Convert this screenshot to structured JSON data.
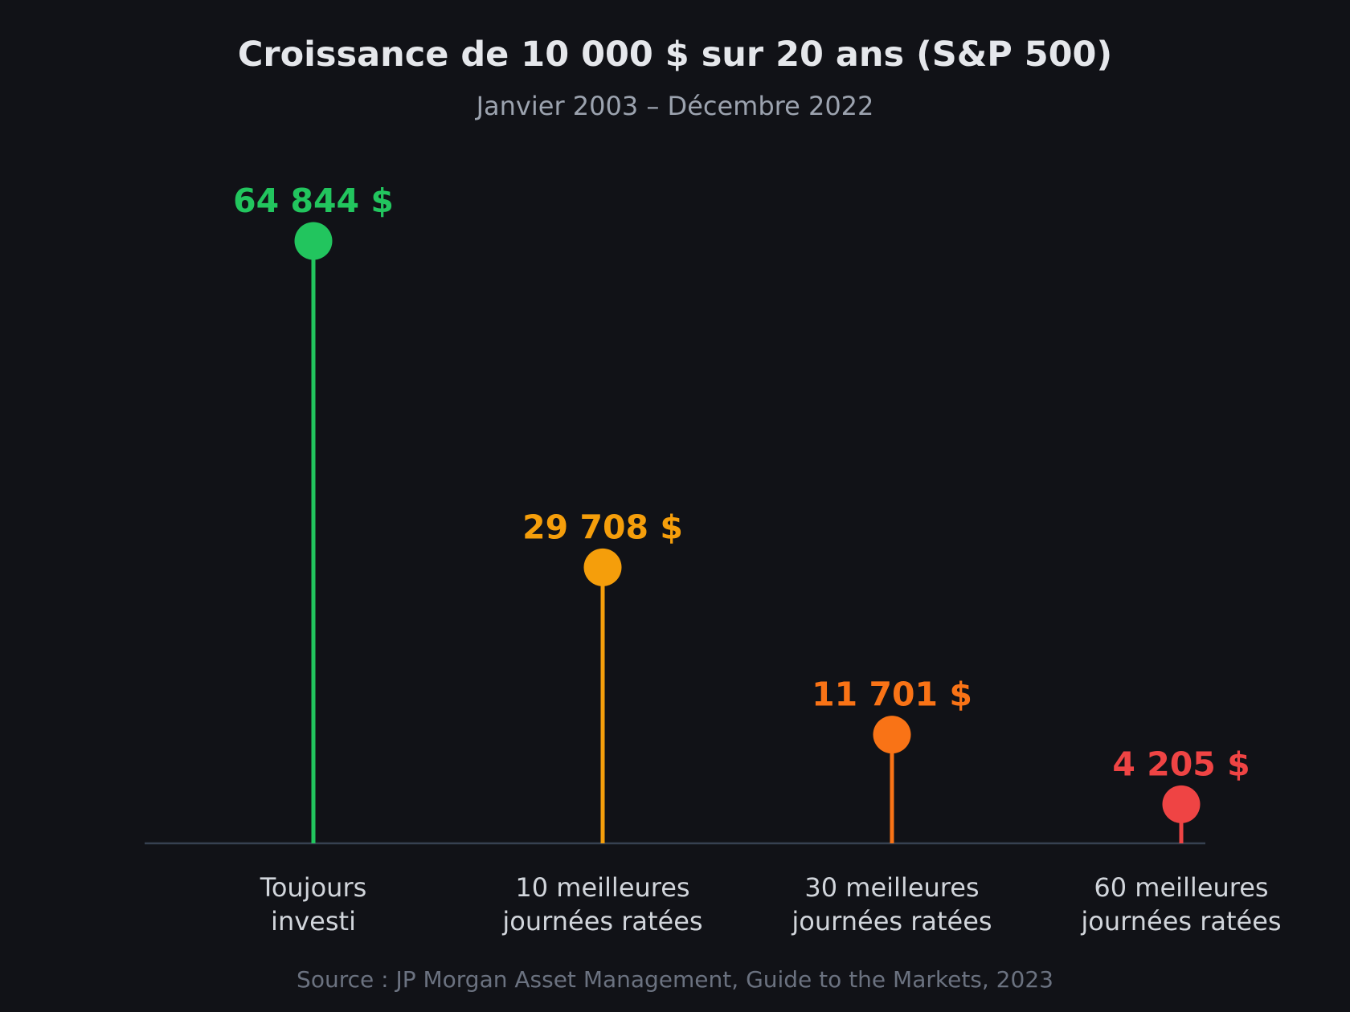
{
  "chart_data": {
    "type": "lollipop",
    "title": "Croissance de 10 000 $ sur 20 ans (S&P 500)",
    "subtitle": "Janvier 2003 – Décembre 2022",
    "source": "Source : JP Morgan Asset Management, Guide to the Markets, 2023",
    "categories": [
      [
        "Toujours",
        "investi"
      ],
      [
        "10 meilleures",
        "journées ratées"
      ],
      [
        "30 meilleures",
        "journées ratées"
      ],
      [
        "60 meilleures",
        "journées ratées"
      ]
    ],
    "values": [
      64844,
      29708,
      11701,
      4205
    ],
    "value_labels": [
      "64 844 $",
      "29 708 $",
      "11 701 $",
      "4 205 $"
    ],
    "colors": [
      "#22c55e",
      "#f59e0b",
      "#f97316",
      "#ef4444"
    ],
    "ylim": [
      0,
      65000
    ],
    "grid": false,
    "legend": "none"
  }
}
